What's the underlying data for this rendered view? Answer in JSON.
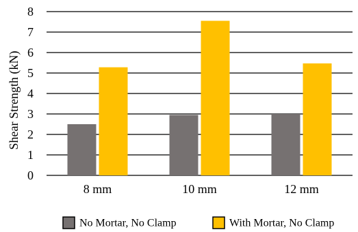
{
  "chart_data": {
    "type": "bar",
    "title": "",
    "xlabel": "",
    "ylabel": "Shear Strength (kN)",
    "categories": [
      "8 mm",
      "10 mm",
      "12 mm"
    ],
    "series": [
      {
        "name": "No Mortar, No Clamp",
        "values": [
          2.5,
          2.95,
          3.0
        ],
        "color": "#767171"
      },
      {
        "name": "With Mortar, No Clamp",
        "values": [
          5.28,
          7.55,
          5.47
        ],
        "color": "#FFC000"
      }
    ],
    "ylim": [
      0,
      8
    ],
    "yticks": [
      0,
      1,
      2,
      3,
      4,
      5,
      6,
      7,
      8
    ],
    "grid": true,
    "legend_position": "bottom"
  }
}
